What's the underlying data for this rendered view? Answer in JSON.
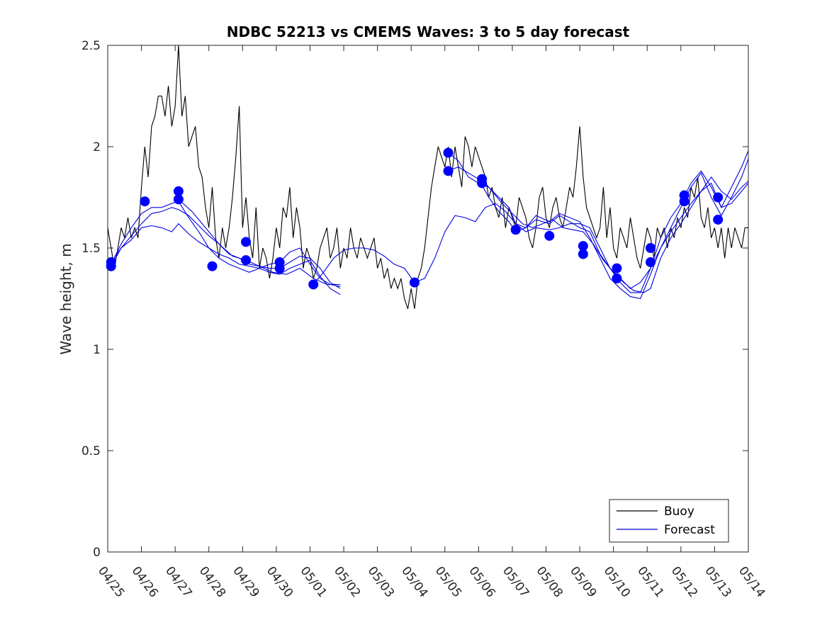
{
  "chart_data": {
    "type": "line",
    "title": "NDBC 52213 vs CMEMS Waves: 3 to 5 day forecast",
    "xlabel": "",
    "ylabel": "Wave height, m",
    "xlim": [
      0,
      19
    ],
    "ylim": [
      0,
      2.5
    ],
    "x_tick_labels": [
      "04/25",
      "04/26",
      "04/27",
      "04/28",
      "04/29",
      "04/30",
      "05/01",
      "05/02",
      "05/03",
      "05/04",
      "05/05",
      "05/06",
      "05/07",
      "05/08",
      "05/09",
      "05/10",
      "05/11",
      "05/12",
      "05/13",
      "05/14"
    ],
    "y_ticks": [
      0,
      0.5,
      1,
      1.5,
      2,
      2.5
    ],
    "y_tick_labels": [
      "0",
      "0.5",
      "1",
      "1.5",
      "2",
      "2.5"
    ],
    "legend_position": "bottom-right",
    "grid": false,
    "colors": {
      "buoy": "#000000",
      "forecast": "#0000e0",
      "marker": "#0000ff"
    },
    "legend": [
      {
        "key": "buoy",
        "label": "Buoy"
      },
      {
        "key": "forecast",
        "label": "Forecast"
      }
    ],
    "buoy": {
      "x": [
        0.0,
        0.1,
        0.2,
        0.3,
        0.4,
        0.5,
        0.6,
        0.7,
        0.8,
        0.9,
        1.0,
        1.1,
        1.2,
        1.3,
        1.4,
        1.5,
        1.6,
        1.7,
        1.8,
        1.9,
        2.0,
        2.1,
        2.2,
        2.3,
        2.4,
        2.5,
        2.6,
        2.7,
        2.8,
        2.9,
        3.0,
        3.1,
        3.2,
        3.3,
        3.4,
        3.5,
        3.6,
        3.7,
        3.8,
        3.9,
        4.0,
        4.1,
        4.2,
        4.3,
        4.4,
        4.5,
        4.6,
        4.7,
        4.8,
        4.9,
        5.0,
        5.1,
        5.2,
        5.3,
        5.4,
        5.5,
        5.6,
        5.7,
        5.8,
        5.9,
        6.0,
        6.1,
        6.2,
        6.3,
        6.4,
        6.5,
        6.6,
        6.7,
        6.8,
        6.9,
        7.0,
        7.1,
        7.2,
        7.3,
        7.4,
        7.5,
        7.6,
        7.7,
        7.8,
        7.9,
        8.0,
        8.1,
        8.2,
        8.3,
        8.4,
        8.5,
        8.6,
        8.7,
        8.8,
        8.9,
        9.0,
        9.1,
        9.2,
        9.3,
        9.4,
        9.5,
        9.6,
        9.7,
        9.8,
        9.9,
        10.0,
        10.1,
        10.2,
        10.3,
        10.4,
        10.5,
        10.6,
        10.7,
        10.8,
        10.9,
        11.0,
        11.1,
        11.2,
        11.3,
        11.4,
        11.5,
        11.6,
        11.7,
        11.8,
        11.9,
        12.0,
        12.1,
        12.2,
        12.3,
        12.4,
        12.5,
        12.6,
        12.7,
        12.8,
        12.9,
        13.0,
        13.1,
        13.2,
        13.3,
        13.4,
        13.5,
        13.6,
        13.7,
        13.8,
        13.9,
        14.0,
        14.1,
        14.2,
        14.3,
        14.4,
        14.5,
        14.6,
        14.7,
        14.8,
        14.9,
        15.0,
        15.1,
        15.2,
        15.3,
        15.4,
        15.5,
        15.6,
        15.7,
        15.8,
        15.9,
        16.0,
        16.1,
        16.2,
        16.3,
        16.4,
        16.5,
        16.6,
        16.7,
        16.8,
        16.9,
        17.0,
        17.1,
        17.2,
        17.3,
        17.4,
        17.5,
        17.6,
        17.7,
        17.8,
        17.9,
        18.0,
        18.1,
        18.2,
        18.3,
        18.4,
        18.5,
        18.6,
        18.7,
        18.8,
        18.9,
        19.0
      ],
      "y": [
        1.6,
        1.5,
        1.4,
        1.5,
        1.6,
        1.55,
        1.65,
        1.55,
        1.6,
        1.55,
        1.8,
        2.0,
        1.85,
        2.1,
        2.15,
        2.25,
        2.25,
        2.15,
        2.3,
        2.1,
        2.2,
        2.5,
        2.15,
        2.25,
        2.0,
        2.05,
        2.1,
        1.9,
        1.85,
        1.7,
        1.6,
        1.8,
        1.55,
        1.45,
        1.6,
        1.5,
        1.6,
        1.75,
        1.95,
        2.2,
        1.6,
        1.75,
        1.55,
        1.45,
        1.7,
        1.4,
        1.5,
        1.45,
        1.35,
        1.45,
        1.6,
        1.5,
        1.7,
        1.65,
        1.8,
        1.55,
        1.7,
        1.6,
        1.4,
        1.5,
        1.45,
        1.35,
        1.4,
        1.5,
        1.55,
        1.6,
        1.45,
        1.5,
        1.6,
        1.4,
        1.5,
        1.45,
        1.6,
        1.5,
        1.45,
        1.55,
        1.5,
        1.45,
        1.5,
        1.55,
        1.4,
        1.45,
        1.35,
        1.4,
        1.3,
        1.35,
        1.3,
        1.35,
        1.25,
        1.2,
        1.3,
        1.2,
        1.35,
        1.4,
        1.5,
        1.65,
        1.8,
        1.9,
        2.0,
        1.95,
        1.9,
        2.0,
        1.85,
        2.0,
        1.9,
        1.8,
        2.05,
        2.0,
        1.9,
        2.0,
        1.95,
        1.9,
        1.85,
        1.75,
        1.8,
        1.7,
        1.65,
        1.75,
        1.6,
        1.7,
        1.65,
        1.6,
        1.75,
        1.7,
        1.65,
        1.55,
        1.5,
        1.6,
        1.75,
        1.8,
        1.65,
        1.6,
        1.7,
        1.75,
        1.65,
        1.6,
        1.7,
        1.8,
        1.75,
        1.9,
        2.1,
        1.85,
        1.7,
        1.65,
        1.6,
        1.55,
        1.6,
        1.8,
        1.55,
        1.7,
        1.5,
        1.45,
        1.6,
        1.55,
        1.5,
        1.65,
        1.55,
        1.45,
        1.4,
        1.5,
        1.6,
        1.55,
        1.45,
        1.6,
        1.55,
        1.6,
        1.5,
        1.6,
        1.55,
        1.65,
        1.6,
        1.7,
        1.65,
        1.8,
        1.75,
        1.85,
        1.65,
        1.6,
        1.7,
        1.55,
        1.6,
        1.5,
        1.6,
        1.45,
        1.6,
        1.5,
        1.6,
        1.55,
        1.5,
        1.6,
        1.6
      ]
    },
    "forecast_series": [
      {
        "x": [
          0.1,
          0.4,
          0.7,
          1.0,
          1.3,
          1.6,
          1.9,
          2.1,
          2.4,
          2.7,
          3.0,
          3.3,
          3.6,
          3.9,
          4.2,
          4.5,
          4.8,
          5.1,
          5.4,
          5.7,
          6.0,
          6.3,
          6.6,
          6.9
        ],
        "y": [
          1.43,
          1.5,
          1.56,
          1.62,
          1.67,
          1.68,
          1.7,
          1.69,
          1.66,
          1.61,
          1.56,
          1.52,
          1.47,
          1.45,
          1.42,
          1.41,
          1.4,
          1.4,
          1.43,
          1.46,
          1.45,
          1.4,
          1.33,
          1.3
        ]
      },
      {
        "x": [
          0.1,
          0.4,
          0.7,
          1.0,
          1.3,
          1.6,
          1.9,
          2.1,
          2.4,
          2.7,
          3.0,
          3.3,
          3.6,
          3.9,
          4.2,
          4.5,
          4.8,
          5.1,
          5.4,
          5.7,
          6.0,
          6.3,
          6.6,
          6.9
        ],
        "y": [
          1.41,
          1.5,
          1.54,
          1.6,
          1.61,
          1.6,
          1.58,
          1.62,
          1.57,
          1.53,
          1.5,
          1.47,
          1.45,
          1.42,
          1.41,
          1.4,
          1.38,
          1.37,
          1.4,
          1.42,
          1.44,
          1.36,
          1.3,
          1.27
        ]
      },
      {
        "x": [
          0.1,
          0.4,
          0.7,
          1.0,
          1.3,
          1.6,
          1.9,
          2.1,
          2.4,
          2.7,
          3.0,
          3.3,
          3.6,
          3.9,
          4.2,
          4.5,
          4.8,
          5.1,
          5.4,
          5.7,
          6.0,
          6.3,
          6.6,
          6.9
        ],
        "y": [
          1.42,
          1.52,
          1.6,
          1.67,
          1.7,
          1.7,
          1.72,
          1.73,
          1.65,
          1.58,
          1.5,
          1.45,
          1.42,
          1.4,
          1.38,
          1.4,
          1.42,
          1.43,
          1.48,
          1.5,
          1.42,
          1.35,
          1.32,
          1.31
        ]
      },
      {
        "x": [
          2.1,
          2.5,
          2.9,
          3.3,
          3.7,
          4.1,
          4.5,
          4.9,
          5.3,
          5.7,
          6.1,
          6.5,
          6.9
        ],
        "y": [
          1.74,
          1.68,
          1.6,
          1.52,
          1.46,
          1.44,
          1.41,
          1.38,
          1.37,
          1.4,
          1.35,
          1.32,
          1.32
        ]
      },
      {
        "x": [
          6.1,
          6.4,
          6.7,
          7.0,
          7.3,
          7.6,
          7.9,
          8.2,
          8.5,
          8.8,
          9.1,
          9.4,
          9.7,
          10.0,
          10.3,
          10.6,
          10.9,
          11.2,
          11.5,
          11.8,
          12.1,
          12.4,
          12.7,
          13.1,
          13.4,
          13.7,
          14.0,
          14.3,
          14.6,
          14.9,
          15.2,
          15.5,
          15.8,
          16.1,
          16.4,
          16.7,
          17.0,
          17.3,
          17.6,
          17.9,
          18.2,
          18.5,
          18.8,
          19.0
        ],
        "y": [
          1.32,
          1.38,
          1.45,
          1.49,
          1.5,
          1.5,
          1.49,
          1.46,
          1.42,
          1.4,
          1.33,
          1.35,
          1.45,
          1.58,
          1.66,
          1.65,
          1.63,
          1.7,
          1.72,
          1.68,
          1.62,
          1.6,
          1.64,
          1.62,
          1.66,
          1.63,
          1.6,
          1.58,
          1.47,
          1.4,
          1.35,
          1.3,
          1.33,
          1.4,
          1.5,
          1.58,
          1.65,
          1.72,
          1.78,
          1.85,
          1.78,
          1.74,
          1.8,
          1.83
        ]
      },
      {
        "x": [
          10.1,
          10.4,
          10.7,
          11.0,
          11.3,
          11.6,
          11.9,
          12.1,
          12.4,
          12.7,
          13.1,
          13.4,
          13.7,
          14.0,
          14.3,
          14.6,
          14.9,
          15.2,
          15.5,
          15.8,
          16.1,
          16.4,
          16.7,
          17.0,
          17.3,
          17.6,
          17.9,
          18.2,
          18.5,
          18.8,
          19.0
        ],
        "y": [
          1.97,
          1.93,
          1.85,
          1.82,
          1.8,
          1.75,
          1.7,
          1.62,
          1.58,
          1.6,
          1.59,
          1.6,
          1.62,
          1.62,
          1.6,
          1.5,
          1.4,
          1.33,
          1.28,
          1.28,
          1.4,
          1.55,
          1.65,
          1.72,
          1.82,
          1.88,
          1.8,
          1.7,
          1.8,
          1.9,
          1.98
        ]
      },
      {
        "x": [
          10.1,
          10.4,
          10.7,
          11.0,
          11.3,
          11.6,
          11.9,
          12.1,
          12.4,
          12.7,
          13.1,
          13.4,
          13.7,
          14.0,
          14.3,
          14.6,
          14.9,
          15.2,
          15.5,
          15.8,
          16.1,
          16.4,
          16.7,
          17.0,
          17.3,
          17.6,
          17.9,
          18.2,
          18.5,
          18.8,
          19.0
        ],
        "y": [
          1.88,
          1.9,
          1.87,
          1.84,
          1.75,
          1.68,
          1.63,
          1.58,
          1.6,
          1.66,
          1.63,
          1.67,
          1.65,
          1.63,
          1.55,
          1.45,
          1.35,
          1.3,
          1.26,
          1.25,
          1.37,
          1.5,
          1.6,
          1.7,
          1.8,
          1.87,
          1.75,
          1.66,
          1.75,
          1.85,
          1.94
        ]
      },
      {
        "x": [
          11.1,
          11.4,
          11.7,
          12.0,
          12.3,
          12.6,
          12.9,
          13.2,
          13.5,
          13.8,
          14.1,
          14.4,
          14.7,
          15.0,
          15.3,
          15.6,
          15.9,
          16.1,
          16.4,
          16.7,
          17.0,
          17.3,
          17.6,
          17.9,
          18.2,
          18.5,
          18.8,
          19.0
        ],
        "y": [
          1.84,
          1.78,
          1.72,
          1.67,
          1.62,
          1.6,
          1.62,
          1.64,
          1.6,
          1.59,
          1.58,
          1.52,
          1.44,
          1.38,
          1.33,
          1.29,
          1.28,
          1.3,
          1.45,
          1.55,
          1.62,
          1.7,
          1.78,
          1.82,
          1.7,
          1.72,
          1.78,
          1.82
        ]
      }
    ],
    "forecast_markers": {
      "x": [
        0.1,
        0.1,
        1.1,
        2.1,
        2.1,
        3.1,
        4.1,
        4.1,
        5.1,
        5.1,
        6.1,
        9.1,
        10.1,
        10.1,
        11.1,
        11.1,
        12.1,
        13.1,
        14.1,
        14.1,
        15.1,
        15.1,
        16.1,
        16.1,
        17.1,
        17.1,
        18.1,
        18.1
      ],
      "y": [
        1.43,
        1.41,
        1.73,
        1.78,
        1.74,
        1.41,
        1.53,
        1.44,
        1.43,
        1.4,
        1.32,
        1.33,
        1.97,
        1.88,
        1.84,
        1.82,
        1.59,
        1.56,
        1.51,
        1.47,
        1.4,
        1.35,
        1.5,
        1.43,
        1.76,
        1.73,
        1.75,
        1.64
      ]
    }
  }
}
